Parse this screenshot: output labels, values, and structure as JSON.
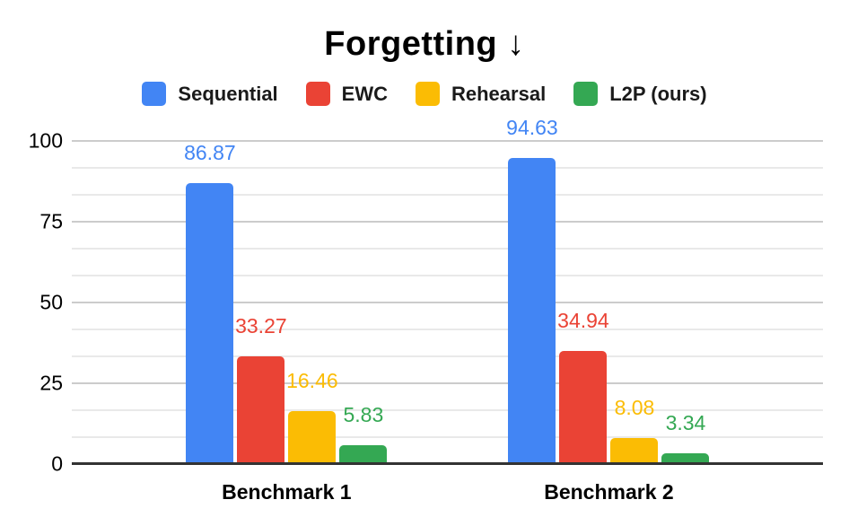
{
  "chart_data": {
    "type": "bar",
    "title": "Forgetting ↓",
    "title_direction_note": "lower is better (down arrow)",
    "categories": [
      "Benchmark 1",
      "Benchmark 2"
    ],
    "series": [
      {
        "name": "Sequential",
        "color": "#4285F4",
        "values": [
          86.87,
          94.63
        ]
      },
      {
        "name": "EWC",
        "color": "#EA4335",
        "values": [
          33.27,
          34.94
        ]
      },
      {
        "name": "Rehearsal",
        "color": "#FBBC04",
        "values": [
          16.46,
          8.08
        ]
      },
      {
        "name": "L2P (ours)",
        "color": "#34A853",
        "values": [
          5.83,
          3.34
        ]
      }
    ],
    "y_axis": {
      "range": [
        0,
        100
      ],
      "ticks": [
        0,
        25,
        50,
        75,
        100
      ],
      "minor_divisions_per_interval": 3
    },
    "legend_position": "top",
    "grid": true,
    "data_labels": true,
    "background_color": "#ffffff",
    "gridline_major_color": "#cccccc",
    "gridline_minor_color": "#e9e9e9",
    "axis_baseline_color": "#333333",
    "text_color": "#000000"
  }
}
